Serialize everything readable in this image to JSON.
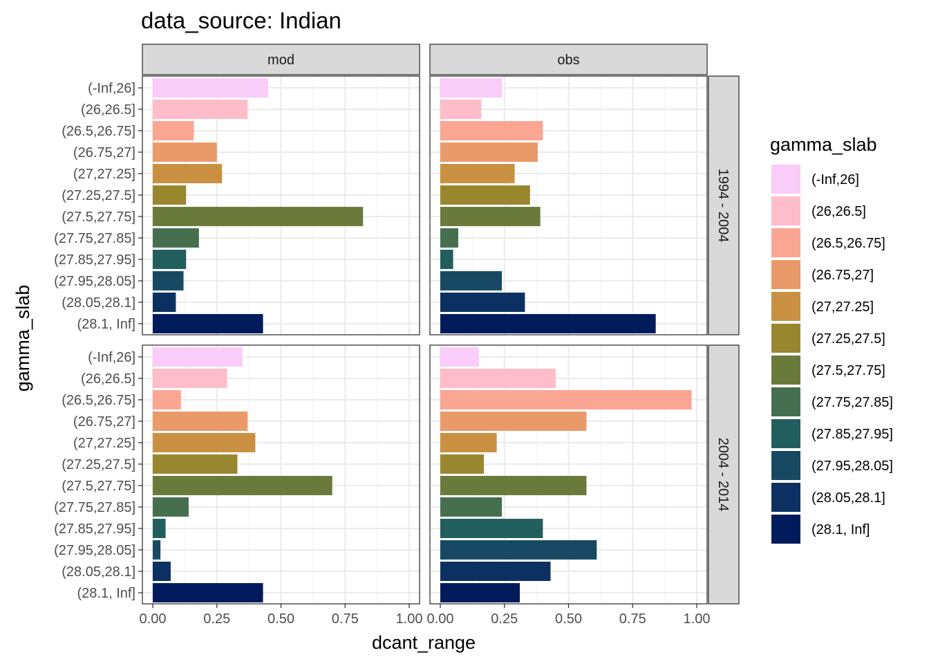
{
  "chart_data": {
    "type": "bar",
    "orientation": "horizontal",
    "title": "data_source: Indian",
    "xlabel": "dcant_range",
    "ylabel": "gamma_slab",
    "xlim": [
      0,
      1
    ],
    "x_ticks": [
      "0.00",
      "0.25",
      "0.50",
      "0.75",
      "1.00"
    ],
    "grid": true,
    "legend_position": "right",
    "legend_title": "gamma_slab",
    "categories": [
      "(-Inf,26]",
      "(26,26.5]",
      "(26.5,26.75]",
      "(26.75,27]",
      "(27,27.25]",
      "(27.25,27.5]",
      "(27.5,27.75]",
      "(27.75,27.85]",
      "(27.85,27.95]",
      "(27.95,28.05]",
      "(28.05,28.1]",
      "(28.1, Inf]"
    ],
    "colors": [
      "#F9CCF9",
      "#FFBCCB",
      "#FBA593",
      "#EA9A69",
      "#CA9042",
      "#998730",
      "#6A7A3B",
      "#466F4F",
      "#225E5E",
      "#174A62",
      "#0D3062",
      "#001B5C"
    ],
    "col_facets": [
      "mod",
      "obs"
    ],
    "row_facets": [
      "1994 - 2004",
      "2004 - 2014"
    ],
    "panels": [
      {
        "row": "1994 - 2004",
        "col": "mod",
        "values": [
          0.45,
          0.37,
          0.16,
          0.25,
          0.27,
          0.13,
          0.82,
          0.18,
          0.13,
          0.12,
          0.09,
          0.43
        ]
      },
      {
        "row": "1994 - 2004",
        "col": "obs",
        "values": [
          0.24,
          0.16,
          0.4,
          0.38,
          0.29,
          0.35,
          0.39,
          0.07,
          0.05,
          0.24,
          0.33,
          0.84
        ]
      },
      {
        "row": "2004 - 2014",
        "col": "mod",
        "values": [
          0.35,
          0.29,
          0.11,
          0.37,
          0.4,
          0.33,
          0.7,
          0.14,
          0.05,
          0.03,
          0.07,
          0.43
        ]
      },
      {
        "row": "2004 - 2014",
        "col": "obs",
        "values": [
          0.15,
          0.45,
          0.98,
          0.57,
          0.22,
          0.17,
          0.57,
          0.24,
          0.4,
          0.61,
          0.43,
          0.31
        ]
      }
    ]
  }
}
